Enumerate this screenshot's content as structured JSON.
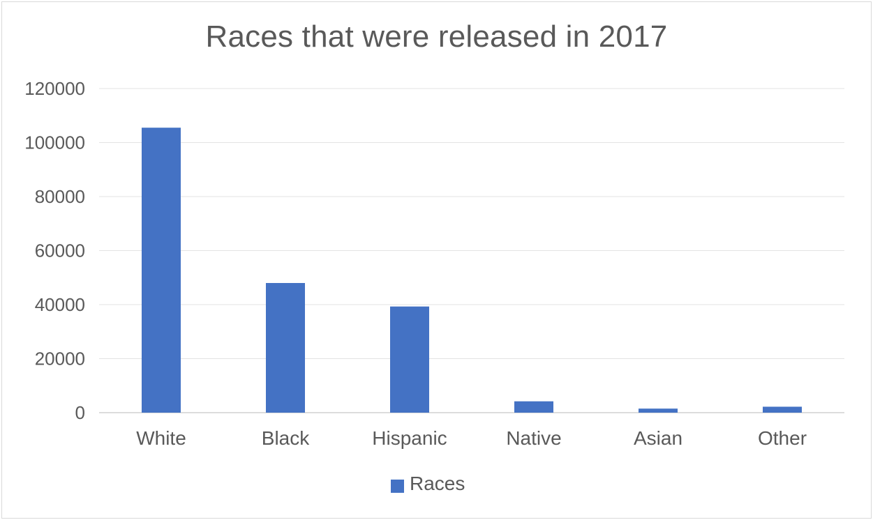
{
  "chart_data": {
    "type": "bar",
    "title": "Races that were released in 2017",
    "categories": [
      "White",
      "Black",
      "Hispanic",
      "Native",
      "Asian",
      "Other"
    ],
    "series": [
      {
        "name": "Races",
        "values": [
          105500,
          48000,
          39300,
          4200,
          1500,
          2200
        ],
        "color": "#4472c4"
      }
    ],
    "yticks": [
      "0",
      "20000",
      "40000",
      "60000",
      "80000",
      "100000",
      "120000"
    ],
    "ylim": [
      0,
      120000
    ],
    "grid": true,
    "legend_position": "bottom"
  }
}
